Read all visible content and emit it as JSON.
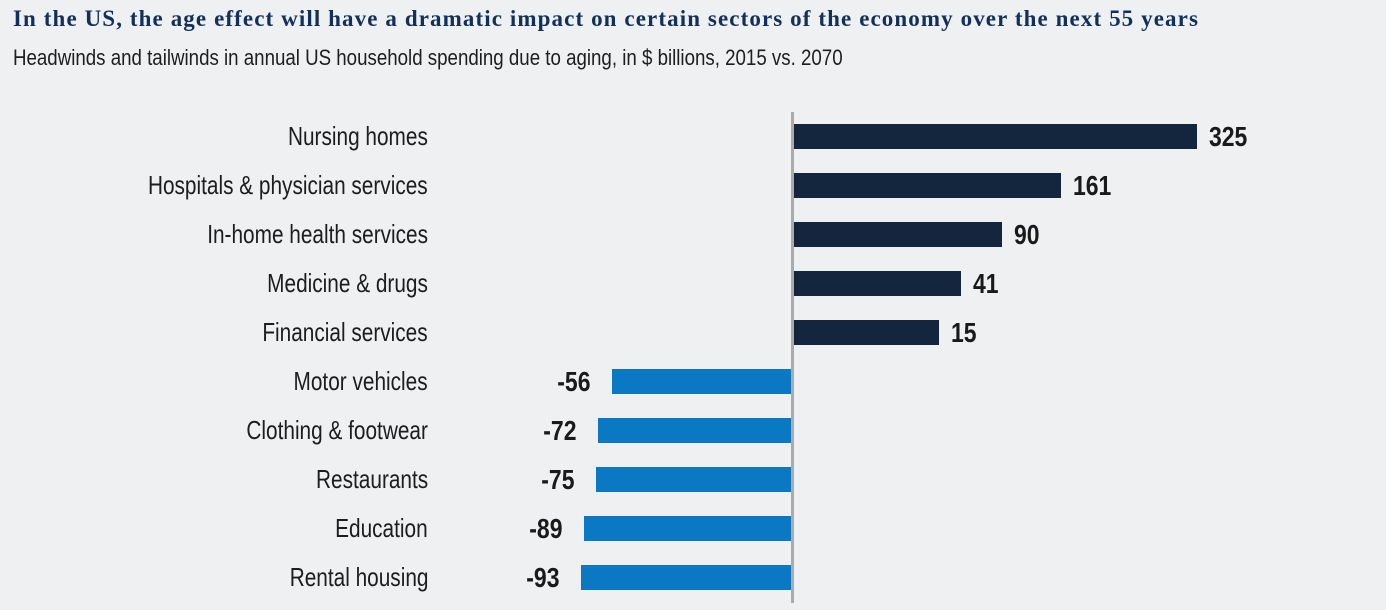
{
  "header": {
    "title": "In the US, the age effect will have a dramatic impact on certain sectors of the economy over the next 55 years",
    "subtitle": "Headwinds and tailwinds in annual US household spending due to aging, in $ billions, 2015 vs. 2070"
  },
  "chart_data": {
    "type": "bar",
    "orientation": "horizontal",
    "title": "In the US, the age effect will have a dramatic impact on certain sectors of the economy over the next 55 years",
    "subtitle": "Headwinds and tailwinds in annual US household spending due to aging, in $ billions, 2015 vs. 2070",
    "unit": "$ billions",
    "categories": [
      "Nursing homes",
      "Hospitals & physician services",
      "In-home health services",
      "Medicine & drugs",
      "Financial services",
      "Motor vehicles",
      "Clothing & footwear",
      "Restaurants",
      "Education",
      "Rental housing"
    ],
    "values": [
      325,
      161,
      90,
      41,
      15,
      -56,
      -72,
      -75,
      -89,
      -93
    ],
    "value_labels": [
      "325",
      "161",
      "90",
      "41",
      "15",
      "-56",
      "-72",
      "-75",
      "-89",
      "-93"
    ],
    "legend": "none",
    "grid": false,
    "zero_axis_line": true,
    "colors": {
      "positive_bar": "#14253e",
      "negative_bar": "#0a78c2",
      "axis_line": "#a9abad",
      "background": "#eef0f1",
      "title_text": "#12305c",
      "label_text": "#1d1d1d"
    }
  }
}
